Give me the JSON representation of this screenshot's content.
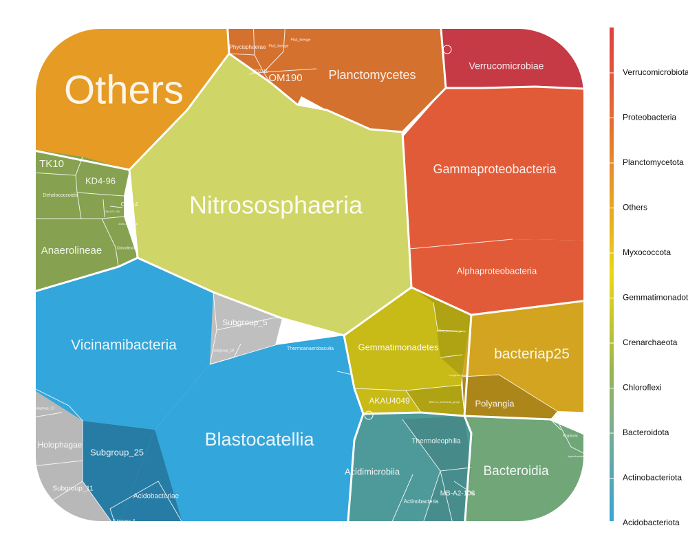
{
  "chart_data": {
    "type": "voronoi-treemap",
    "title": "",
    "phyla": [
      {
        "name": "Others",
        "color": "#E59B24",
        "classes": [
          "Others"
        ]
      },
      {
        "name": "Verrucomicrobiota",
        "color": "#C63A45",
        "classes": [
          "Verrucomicrobiae"
        ]
      },
      {
        "name": "Proteobacteria",
        "color": "#E25B38",
        "classes": [
          "Gammaproteobacteria",
          "Alphaproteobacteria"
        ]
      },
      {
        "name": "Planctomycetota",
        "color": "#D4712E",
        "classes": [
          "Planctomycetes",
          "OM190",
          "Phycisphaerae",
          "BD7-11",
          "Pla3_lineage",
          "Pla4_lineage"
        ]
      },
      {
        "name": "Crenarchaeota",
        "color": "#CFD567",
        "classes": [
          "Nitrososphaeria"
        ]
      },
      {
        "name": "Chloroflexi",
        "color": "#86A150",
        "classes": [
          "TK10",
          "KD4-96",
          "Dehalococcoidia",
          "Anaerolineae",
          "OLB14",
          "Gitt-GS-136",
          "JG30-KF-CM66",
          "Chloroflexia"
        ]
      },
      {
        "name": "Gemmatimonadota",
        "color": "#C8BA17",
        "classes": [
          "Gemmatimonadetes",
          "AKAU4049",
          "S0134_terrestrial_group",
          "BD2-11_terrestrial_group",
          "Longimicrobia"
        ]
      },
      {
        "name": "Myxococcota",
        "color": "#D3A420",
        "classes": [
          "bacteriap25",
          "Polyangia",
          "Myxococcia"
        ]
      },
      {
        "name": "Acidobacteriota",
        "color": "#33A6DB",
        "classes": [
          "Vicinamibacteria",
          "Blastocatellia",
          "Subgroup_5",
          "Subgroup_18",
          "Thermoanaerobaculia",
          "Subgroup_22",
          "Holophagae",
          "Subgroup_25",
          "Subgroup_11",
          "Acidobacteriae",
          "Subgroup_6"
        ]
      },
      {
        "name": "Actinobacteriota",
        "color": "#4E9A9A",
        "classes": [
          "Acidimicrobiia",
          "Thermoleophilia",
          "Actinobacteria",
          "MB-A2-108"
        ]
      },
      {
        "name": "Bacteroidota",
        "color": "#70A678",
        "classes": [
          "Bacteroidia",
          "Kryptonia",
          "Ignavibacteria"
        ]
      }
    ],
    "legend": {
      "position": "right",
      "entries": [
        "Verrucomicrobiota",
        "Proteobacteria",
        "Planctomycetota",
        "Others",
        "Myxococcota",
        "Gemmatimonadota",
        "Crenarchaeota",
        "Chloroflexi",
        "Bacteroidota",
        "Actinobacteriota",
        "Acidobacteriota"
      ],
      "entry_labels": [
        "Verrucomicrobiota",
        "Proteobacteria",
        "Planctomycetota",
        "Others",
        "Myxococcota",
        "Gemmatimonadota",
        "Crenarchaeota",
        "Chloroflexi",
        "Bacteroidota",
        "Actinobacteriota",
        "Acidobacteriota"
      ],
      "gradient_colors": [
        "#E0413F",
        "#E2573A",
        "#E4712F",
        "#E89226",
        "#E9B21E",
        "#EBD616",
        "#C2C62E",
        "#97B451",
        "#7FB08A",
        "#5AA7B0",
        "#36A5D6"
      ]
    }
  }
}
